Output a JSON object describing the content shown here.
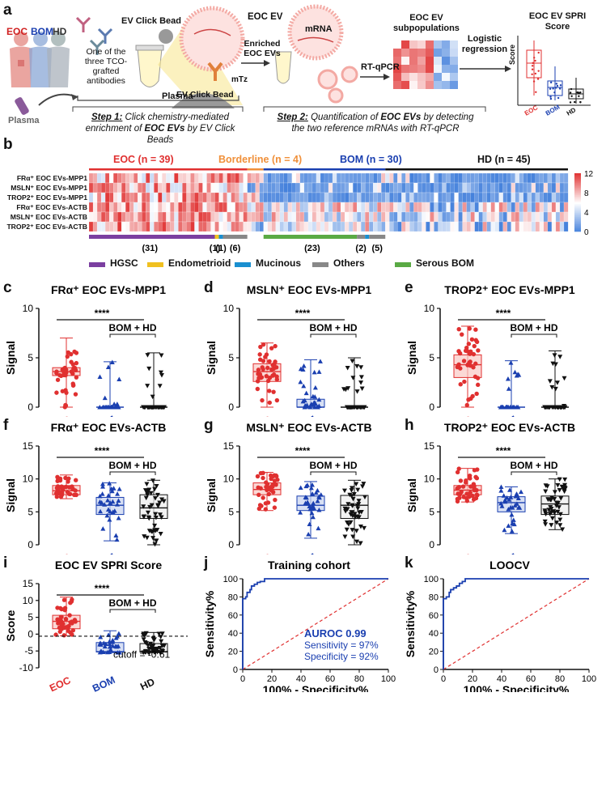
{
  "panel_labels": {
    "a": "a",
    "b": "b",
    "c": "c",
    "d": "d",
    "e": "e",
    "f": "f",
    "g": "g",
    "h": "h",
    "i": "i",
    "j": "j",
    "k": "k"
  },
  "schematic": {
    "eoc": "EOC",
    "bom": "BOM",
    "hd": "HD",
    "plasma_person": "Plasma",
    "plasma_tube": "Plasma",
    "antibody_note": "One of the three TCO-grafted antibodies",
    "ev_click_bead_top": "EV Click Bead",
    "ev_click_bead_bottom": "EV Click Bead",
    "eoc_ev": "EOC EV",
    "mtz": "mTz",
    "enriched": "Enriched EOC EVs",
    "mrna": "mRNA",
    "rtqpcr": "RT-qPCR",
    "subpops": "EOC EV subpopulations",
    "logistic": "Logistic regression",
    "spri_title": "EOC EV SPRI Score",
    "score_axis": "Score",
    "step1_bold": "Step 1:",
    "step1_line1": "Click chemistry-mediated",
    "step1_line2a": "enrichment of ",
    "step1_line2b": "EOC EVs",
    "step1_line2c": " by EV Click Beads",
    "step2_bold": "Step 2:",
    "step2_line1a": "Quantification of ",
    "step2_line1b": "EOC EVs",
    "step2_line1c": " by detecting",
    "step2_line2": "the two reference mRNAs with RT-qPCR"
  },
  "heatmap": {
    "groups": [
      {
        "label": "EOC (n = 39)",
        "color": "#e03030"
      },
      {
        "label": "Borderline (n = 4)",
        "color": "#f0903a"
      },
      {
        "label": "BOM (n = 30)",
        "color": "#1a3fb0"
      },
      {
        "label": "HD (n = 45)",
        "color": "#111111"
      }
    ],
    "rows": [
      "FRα⁺ EOC EVs-MPP1",
      "MSLN⁺ EOC EVs-MPP1",
      "TROP2⁺ EOC EVs-MPP1",
      "FRα⁺ EOC EVs-ACTB",
      "MSLN⁺ EOC EVs-ACTB",
      "TROP2⁺ EOC EVs-ACTB"
    ],
    "colorbar_ticks": [
      "12",
      "8",
      "4",
      "0"
    ],
    "subtype_counts": [
      "(31)",
      "(1)",
      "(1)",
      "(6)",
      "(23)",
      "(2)",
      "(5)"
    ],
    "legend": [
      {
        "label": "HGSC",
        "color": "#7b3fa0"
      },
      {
        "label": "Endometrioid",
        "color": "#f0c020"
      },
      {
        "label": "Mucinous",
        "color": "#1a8fd0"
      },
      {
        "label": "Others",
        "color": "#888888"
      },
      {
        "label": "Serous BOM",
        "color": "#5aaa44"
      }
    ]
  },
  "common": {
    "signal": "Signal",
    "score": "Score",
    "sig": "****",
    "bom_hd": "BOM + HD",
    "eoc": "EOC",
    "bom": "BOM",
    "hd": "HD"
  },
  "chart_data": [
    {
      "panel": "c",
      "type": "box-scatter",
      "title": "FRα⁺ EOC EVs-MPP1",
      "ylabel": "Signal",
      "ylim": [
        0,
        10
      ],
      "yticks": [
        0,
        5,
        10
      ],
      "categories": [
        "EOC",
        "BOM",
        "HD"
      ],
      "series": [
        {
          "name": "EOC",
          "min": 0,
          "q1": 3.2,
          "median": 3.6,
          "q3": 4.0,
          "max": 7.0
        },
        {
          "name": "BOM",
          "min": 0,
          "q1": 0,
          "median": 0,
          "q3": 0,
          "max": 4.6
        },
        {
          "name": "HD",
          "min": 0,
          "q1": 0,
          "median": 0,
          "q3": 0,
          "max": 5.5
        }
      ]
    },
    {
      "panel": "d",
      "type": "box-scatter",
      "title": "MSLN⁺ EOC EVs-MPP1",
      "ylabel": "Signal",
      "ylim": [
        0,
        10
      ],
      "yticks": [
        0,
        5,
        10
      ],
      "categories": [
        "EOC",
        "BOM",
        "HD"
      ],
      "series": [
        {
          "name": "EOC",
          "min": 0,
          "q1": 2.6,
          "median": 3.6,
          "q3": 4.4,
          "max": 6.5
        },
        {
          "name": "BOM",
          "min": 0,
          "q1": 0,
          "median": 0,
          "q3": 0.8,
          "max": 4.8
        },
        {
          "name": "HD",
          "min": 0,
          "q1": 0,
          "median": 0,
          "q3": 0,
          "max": 5.0
        }
      ]
    },
    {
      "panel": "e",
      "type": "box-scatter",
      "title": "TROP2⁺ EOC EVs-MPP1",
      "ylabel": "Signal",
      "ylim": [
        0,
        10
      ],
      "yticks": [
        0,
        5,
        10
      ],
      "categories": [
        "EOC",
        "BOM",
        "HD"
      ],
      "series": [
        {
          "name": "EOC",
          "min": 0,
          "q1": 3.0,
          "median": 4.3,
          "q3": 5.3,
          "max": 8.2
        },
        {
          "name": "BOM",
          "min": 0,
          "q1": 0,
          "median": 0,
          "q3": 0,
          "max": 4.7
        },
        {
          "name": "HD",
          "min": 0,
          "q1": 0,
          "median": 0,
          "q3": 0,
          "max": 5.7
        }
      ]
    },
    {
      "panel": "f",
      "type": "box-scatter",
      "title": "FRα⁺ EOC EVs-ACTB",
      "ylabel": "Signal",
      "ylim": [
        0,
        15
      ],
      "yticks": [
        0,
        5,
        10,
        15
      ],
      "categories": [
        "EOC",
        "BOM",
        "HD"
      ],
      "series": [
        {
          "name": "EOC",
          "min": 7.0,
          "q1": 7.6,
          "median": 8.2,
          "q3": 9.0,
          "max": 10.6
        },
        {
          "name": "BOM",
          "min": 0.6,
          "q1": 4.6,
          "median": 6.0,
          "q3": 7.2,
          "max": 9.4
        },
        {
          "name": "HD",
          "min": 0,
          "q1": 4.0,
          "median": 5.6,
          "q3": 7.6,
          "max": 9.8
        }
      ]
    },
    {
      "panel": "g",
      "type": "box-scatter",
      "title": "MSLN⁺ EOC EVs-ACTB",
      "ylabel": "Signal",
      "ylim": [
        0,
        15
      ],
      "yticks": [
        0,
        5,
        10,
        15
      ],
      "categories": [
        "EOC",
        "BOM",
        "HD"
      ],
      "series": [
        {
          "name": "EOC",
          "min": 5.2,
          "q1": 7.6,
          "median": 8.4,
          "q3": 9.4,
          "max": 11.0
        },
        {
          "name": "BOM",
          "min": 1.0,
          "q1": 5.2,
          "median": 6.0,
          "q3": 7.4,
          "max": 9.6
        },
        {
          "name": "HD",
          "min": 0,
          "q1": 4.0,
          "median": 6.0,
          "q3": 7.5,
          "max": 9.8
        }
      ]
    },
    {
      "panel": "h",
      "type": "box-scatter",
      "title": "TROP2⁺ EOC EVs-ACTB",
      "ylabel": "Signal",
      "ylim": [
        0,
        15
      ],
      "yticks": [
        0,
        5,
        10,
        15
      ],
      "categories": [
        "EOC",
        "BOM",
        "HD"
      ],
      "series": [
        {
          "name": "EOC",
          "min": 6.5,
          "q1": 7.6,
          "median": 8.3,
          "q3": 9.0,
          "max": 11.6
        },
        {
          "name": "BOM",
          "min": 1.7,
          "q1": 5.0,
          "median": 6.4,
          "q3": 7.3,
          "max": 8.8
        },
        {
          "name": "HD",
          "min": 2.3,
          "q1": 4.6,
          "median": 6.2,
          "q3": 7.4,
          "max": 10.0
        }
      ]
    },
    {
      "panel": "i",
      "type": "box-scatter",
      "title": "EOC EV SPRI Score",
      "ylabel": "Score",
      "ylim": [
        -10,
        15
      ],
      "yticks": [
        -10,
        -5,
        0,
        5,
        10,
        15
      ],
      "categories": [
        "EOC",
        "BOM",
        "HD"
      ],
      "cutoff_label": "cutoff = -0.61",
      "cutoff": -0.61,
      "series": [
        {
          "name": "EOC",
          "min": -0.5,
          "q1": 1.6,
          "median": 3.8,
          "q3": 5.6,
          "max": 11.0
        },
        {
          "name": "BOM",
          "min": -5.5,
          "q1": -5.3,
          "median": -5.2,
          "q3": -2.5,
          "max": 1.0
        },
        {
          "name": "HD",
          "min": -5.5,
          "q1": -5.3,
          "median": -5.2,
          "q3": -2.8,
          "max": 0.5
        }
      ]
    },
    {
      "panel": "j",
      "type": "line",
      "title": "Training cohort",
      "xlabel": "100% - Specificity%",
      "ylabel": "Sensitivity%",
      "xlim": [
        0,
        100
      ],
      "ylim": [
        0,
        100
      ],
      "ticks": [
        0,
        20,
        40,
        60,
        80,
        100
      ],
      "x": [
        0,
        0,
        2,
        2,
        3,
        3,
        5,
        5,
        6,
        6,
        8,
        8,
        10,
        10,
        12,
        12,
        15,
        15,
        100
      ],
      "y": [
        0,
        78,
        78,
        80,
        80,
        85,
        85,
        88,
        88,
        92,
        92,
        94,
        94,
        96,
        96,
        97,
        97,
        100,
        100
      ],
      "annotations": [
        "AUROC 0.99",
        "Sensitivity = 97%",
        "Specificity = 92%"
      ]
    },
    {
      "panel": "k",
      "type": "line",
      "title": "LOOCV",
      "xlabel": "100% - Specificity%",
      "ylabel": "Sensitivity%",
      "xlim": [
        0,
        100
      ],
      "ylim": [
        0,
        100
      ],
      "ticks": [
        0,
        20,
        40,
        60,
        80,
        100
      ],
      "x": [
        0,
        0,
        2,
        2,
        4,
        4,
        5,
        5,
        7,
        7,
        9,
        9,
        11,
        11,
        13,
        13,
        15,
        15,
        100
      ],
      "y": [
        0,
        78,
        78,
        80,
        80,
        85,
        85,
        88,
        88,
        90,
        90,
        92,
        92,
        95,
        95,
        97,
        97,
        100,
        100
      ]
    }
  ]
}
